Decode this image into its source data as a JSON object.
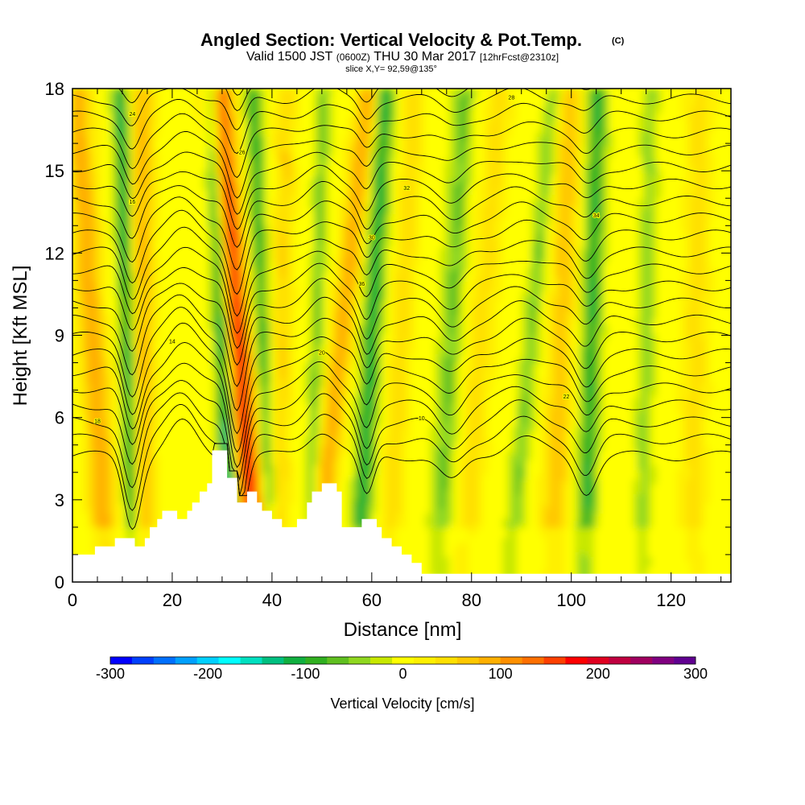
{
  "chart_data": {
    "type": "heatmap",
    "title": "Angled Section: Vertical Velocity & Pot.Temp.",
    "title_mark": "(C)",
    "subtitle": {
      "valid": "Valid 1500 JST",
      "utc": "(0600Z)",
      "date": "THU 30 Mar 2017",
      "forecast": "[12hrFcst@2310z]"
    },
    "slice_label": "slice X,Y= 92,59@135°",
    "xlabel": "Distance [nm]",
    "ylabel": "Height [Kft MSL]",
    "xlim": [
      0,
      132
    ],
    "ylim": [
      0,
      18
    ],
    "x_ticks": [
      "0",
      "20",
      "40",
      "60",
      "80",
      "100",
      "120"
    ],
    "y_ticks": [
      "0",
      "3",
      "6",
      "9",
      "12",
      "15",
      "18"
    ],
    "x_tick_values": [
      0,
      20,
      40,
      60,
      80,
      100,
      120
    ],
    "y_tick_values": [
      0,
      3,
      6,
      9,
      12,
      15,
      18
    ],
    "colorbar": {
      "label": "Vertical Velocity [cm/s]",
      "range": [
        -300,
        300
      ],
      "tick_labels": [
        "-300",
        "-200",
        "-100",
        "0",
        "100",
        "200",
        "300"
      ],
      "tick_values": [
        -300,
        -200,
        -100,
        0,
        100,
        200,
        300
      ],
      "colors": [
        "#0000ff",
        "#0040ff",
        "#0070ff",
        "#00a0ff",
        "#00d0ff",
        "#00ffff",
        "#00e0c0",
        "#00c080",
        "#10b040",
        "#30b020",
        "#60c020",
        "#90d820",
        "#c8e800",
        "#ffff00",
        "#fff000",
        "#ffe000",
        "#ffc800",
        "#ffb000",
        "#ff9000",
        "#ff7000",
        "#ff4000",
        "#ff0000",
        "#e00020",
        "#c00040",
        "#a00060",
        "#800080",
        "#600090"
      ]
    },
    "terrain_kft": [
      [
        0,
        1
      ],
      [
        4.5,
        1
      ],
      [
        4.5,
        1.3
      ],
      [
        8.5,
        1.3
      ],
      [
        8.5,
        1.6
      ],
      [
        12.5,
        1.6
      ],
      [
        12.5,
        1.3
      ],
      [
        14.5,
        1.3
      ],
      [
        14.5,
        1.6
      ],
      [
        15.5,
        1.6
      ],
      [
        15.5,
        2
      ],
      [
        17,
        2
      ],
      [
        17,
        2.3
      ],
      [
        18,
        2.3
      ],
      [
        18,
        2.6
      ],
      [
        21,
        2.6
      ],
      [
        21,
        2.3
      ],
      [
        23,
        2.3
      ],
      [
        23,
        2.6
      ],
      [
        24,
        2.6
      ],
      [
        24,
        2.9
      ],
      [
        25.5,
        2.9
      ],
      [
        25.5,
        3.3
      ],
      [
        27,
        3.3
      ],
      [
        27,
        3.6
      ],
      [
        28,
        3.6
      ],
      [
        28,
        4.8
      ],
      [
        31,
        4.8
      ],
      [
        31,
        3.8
      ],
      [
        33,
        3.8
      ],
      [
        33,
        2.9
      ],
      [
        35,
        2.9
      ],
      [
        35,
        3.3
      ],
      [
        37,
        3.3
      ],
      [
        37,
        2.9
      ],
      [
        38,
        2.9
      ],
      [
        38,
        2.6
      ],
      [
        40,
        2.6
      ],
      [
        40,
        2.3
      ],
      [
        42,
        2.3
      ],
      [
        42,
        2
      ],
      [
        45,
        2
      ],
      [
        45,
        2.3
      ],
      [
        47,
        2.3
      ],
      [
        47,
        2.9
      ],
      [
        48,
        2.9
      ],
      [
        48,
        3.3
      ],
      [
        50,
        3.3
      ],
      [
        50,
        3.6
      ],
      [
        53,
        3.6
      ],
      [
        53,
        3.3
      ],
      [
        54,
        3.3
      ],
      [
        54,
        2
      ],
      [
        58,
        2
      ],
      [
        58,
        2.3
      ],
      [
        61,
        2.3
      ],
      [
        61,
        2
      ],
      [
        62,
        2
      ],
      [
        62,
        1.6
      ],
      [
        64,
        1.6
      ],
      [
        64,
        1.3
      ],
      [
        66,
        1.3
      ],
      [
        66,
        1
      ],
      [
        68,
        1
      ],
      [
        68,
        0.7
      ],
      [
        70,
        0.7
      ],
      [
        70,
        0.3
      ],
      [
        132,
        0.3
      ]
    ],
    "isentrope_labels": [
      "24",
      "26",
      "30",
      "18",
      "10",
      "16",
      "14",
      "20",
      "22",
      "28",
      "32",
      "34",
      "36"
    ]
  }
}
